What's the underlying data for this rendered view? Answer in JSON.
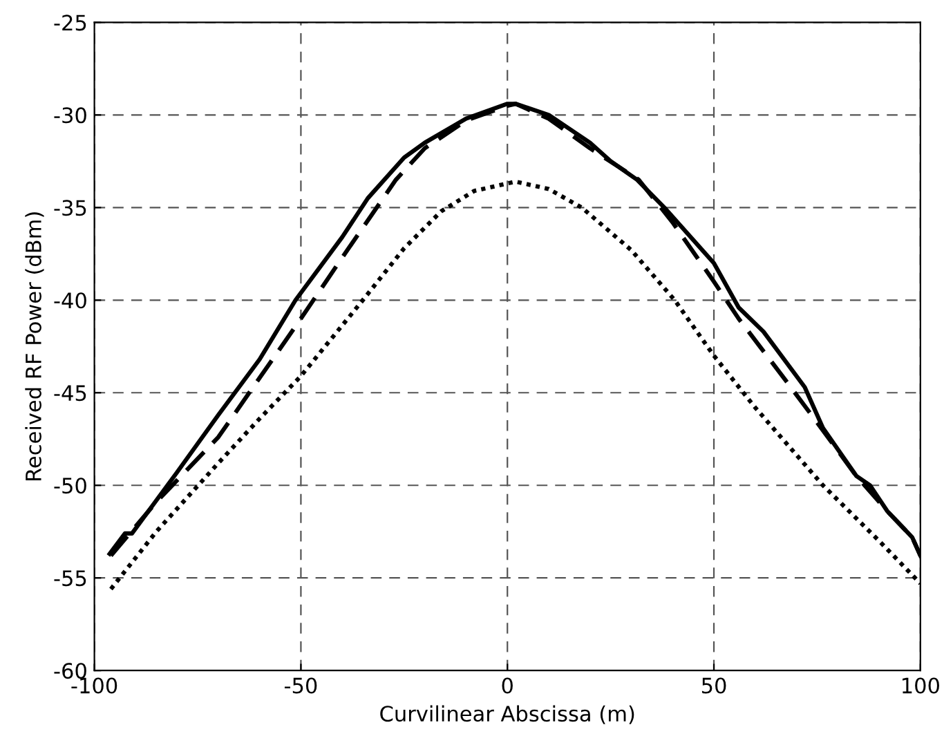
{
  "chart_data": {
    "type": "line",
    "xlabel": "Curvilinear Abscissa (m)",
    "ylabel": "Received RF Power (dBm)",
    "xlim": [
      -100,
      100
    ],
    "xticks": [
      -100,
      -50,
      0,
      50,
      100
    ],
    "ylim": [
      -60,
      -25
    ],
    "yticks": [
      -60,
      -55,
      -50,
      -45,
      -40,
      -35,
      -30,
      -25
    ],
    "grid": true,
    "marker": "none",
    "series": [
      {
        "color": "#000000",
        "line_style": "solid",
        "x": [
          -96.3,
          -92.6,
          -90.9,
          -80,
          -70,
          -60,
          -51.3,
          -40,
          -33.8,
          -25,
          -20,
          -10,
          0,
          2,
          10,
          20,
          25,
          31.4,
          38,
          50,
          56,
          62,
          72,
          76.4,
          84.5,
          87.8,
          92,
          98,
          100
        ],
        "values": [
          -53.7,
          -52.6,
          -52.6,
          -49.3,
          -46.2,
          -43.2,
          -40,
          -36.6,
          -34.5,
          -32.3,
          -31.5,
          -30.2,
          -29.4,
          -29.4,
          -30,
          -31.5,
          -32.5,
          -33.5,
          -35,
          -38,
          -40.4,
          -41.7,
          -44.7,
          -46.9,
          -49.5,
          -50,
          -51.4,
          -52.8,
          -53.8
        ]
      },
      {
        "color": "#000000",
        "line_style": "dashed",
        "x": [
          -96,
          -85,
          -70,
          -60,
          -50,
          -40,
          -27,
          -20,
          -10,
          0,
          2,
          10,
          20,
          31.8,
          40,
          50,
          56,
          67.6,
          75.3,
          84.5,
          92,
          98,
          100
        ],
        "values": [
          -53.8,
          -50.9,
          -47.4,
          -44.2,
          -41,
          -37.7,
          -33.5,
          -31.8,
          -30.3,
          -29.5,
          -29.4,
          -30.2,
          -31.8,
          -33.5,
          -35.8,
          -39,
          -41,
          -44.4,
          -46.7,
          -49.5,
          -51.4,
          -52.8,
          -53.8
        ]
      },
      {
        "color": "#000000",
        "line_style": "dotted",
        "x": [
          -96,
          -85,
          -70,
          -60,
          -50,
          -35,
          -25,
          -16,
          -8,
          0,
          2,
          10,
          18,
          30,
          40.5,
          50,
          60,
          76.4,
          90,
          100
        ],
        "values": [
          -55.6,
          -52.5,
          -48.8,
          -46.4,
          -44.1,
          -40,
          -37.2,
          -35.2,
          -34.1,
          -33.7,
          -33.6,
          -34,
          -35,
          -37.3,
          -40,
          -43,
          -45.8,
          -50,
          -53,
          -55.3
        ]
      }
    ]
  }
}
